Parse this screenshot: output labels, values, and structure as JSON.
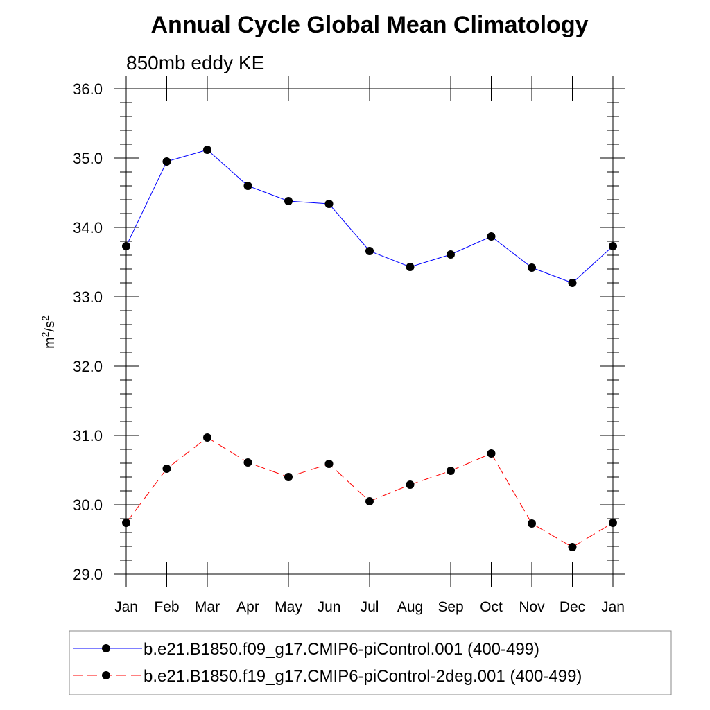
{
  "chart_data": {
    "type": "line",
    "title": "Annual Cycle Global Mean Climatology",
    "subtitle": "850mb eddy KE",
    "ylabel": {
      "base": "m",
      "exp1": "2",
      "sep": "/s",
      "exp2": "2"
    },
    "xlabel": "",
    "categories": [
      "Jan",
      "Feb",
      "Mar",
      "Apr",
      "May",
      "Jun",
      "Jul",
      "Aug",
      "Sep",
      "Oct",
      "Nov",
      "Dec",
      "Jan"
    ],
    "ylim": [
      29.0,
      36.0
    ],
    "yticks": [
      "29.0",
      "30.0",
      "31.0",
      "32.0",
      "33.0",
      "34.0",
      "35.0",
      "36.0"
    ],
    "ytick_values": [
      29,
      30,
      31,
      32,
      33,
      34,
      35,
      36
    ],
    "minor_tick_step": 0.2,
    "grid": false,
    "legend_position": "bottom",
    "series": [
      {
        "name": "b.e21.B1850.f09_g17.CMIP6-piControl.001 (400-499)",
        "color": "#0000ff",
        "dash": "solid",
        "values": [
          33.73,
          34.95,
          35.12,
          34.6,
          34.38,
          34.34,
          33.66,
          33.43,
          33.61,
          33.87,
          33.42,
          33.2,
          33.73
        ]
      },
      {
        "name": "b.e21.B1850.f19_g17.CMIP6-piControl-2deg.001 (400-499)",
        "color": "#ff0000",
        "dash": "dashed",
        "values": [
          29.74,
          30.52,
          30.97,
          30.61,
          30.4,
          30.59,
          30.05,
          30.29,
          30.49,
          30.74,
          29.73,
          29.39,
          29.74
        ]
      }
    ]
  }
}
